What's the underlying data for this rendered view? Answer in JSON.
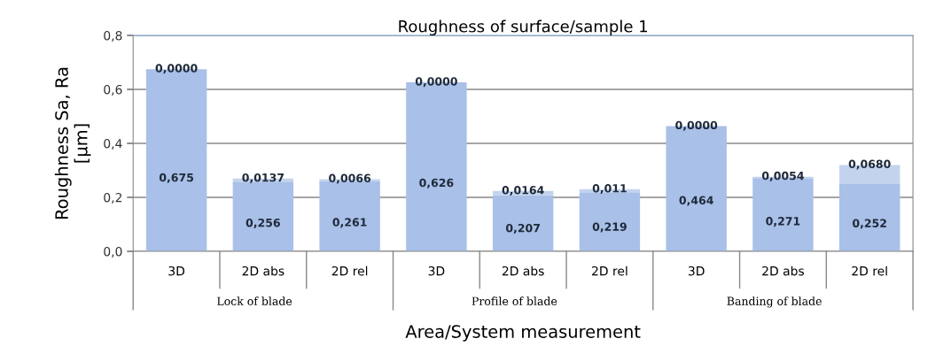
{
  "chart_data": {
    "type": "bar",
    "title": "Roughness of surface/sample 1",
    "xlabel": "Area/System measurement",
    "ylabel": "Roughness Sa, Ra\n[µm]",
    "categories": [
      "3D",
      "2D abs",
      "2D rel",
      "3D",
      "2D abs",
      "2D rel",
      "3D",
      "2D abs",
      "2D rel"
    ],
    "stacked": true,
    "series": [
      {
        "color": "#a9c0e8",
        "values": [
          0.675,
          0.256,
          0.261,
          0.626,
          0.207,
          0.219,
          0.464,
          0.271,
          0.252
        ],
        "value_labels": [
          "0,675",
          "0,256",
          "0,261",
          "0,626",
          "0,207",
          "0,219",
          "0,464",
          "0,271",
          "0,252"
        ]
      },
      {
        "color": "#c3d3ee",
        "values": [
          0.0,
          0.0137,
          0.0066,
          0.0,
          0.0164,
          0.011,
          0.0,
          0.0054,
          0.068
        ],
        "value_labels": [
          "0,0000",
          "0,0137",
          "0,0066",
          "0,0000",
          "0,0164",
          "0,011",
          "0,0000",
          "0,0054",
          "0,0680"
        ]
      }
    ],
    "annotations": [
      "Lock of blade",
      "Profile of blade",
      "Banding of blade"
    ],
    "ylim": [
      0,
      0.8
    ],
    "yticks": [
      {
        "value": 0,
        "label": "0,0"
      },
      {
        "value": 0.2,
        "label": "0,2"
      },
      {
        "value": 0.4,
        "label": "0,4"
      },
      {
        "value": 0.6,
        "label": "0,6"
      },
      {
        "value": 0.8,
        "label": "0,8"
      }
    ],
    "grid": "y",
    "legend": false
  }
}
